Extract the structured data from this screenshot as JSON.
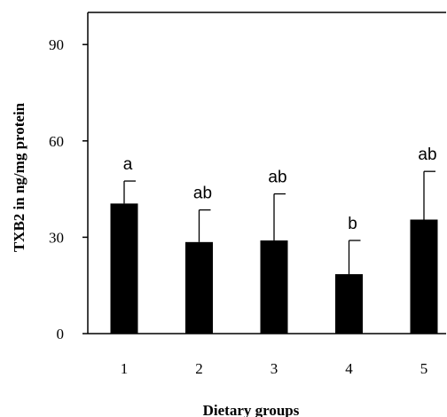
{
  "chart_data": {
    "type": "bar",
    "categories": [
      "1",
      "2",
      "3",
      "4",
      "5"
    ],
    "values": [
      40.5,
      28.5,
      29,
      18.5,
      35.5
    ],
    "errors": [
      7,
      10,
      14.5,
      10.5,
      15
    ],
    "significance_labels": [
      "a",
      "ab",
      "ab",
      "b",
      "ab"
    ],
    "xlabel": "Dietary groups",
    "ylabel": "TXB2 in ng/mg protein",
    "ylim": [
      0,
      100
    ],
    "yticks": [
      0,
      30,
      60,
      90
    ],
    "grid": false,
    "bar_color": "#000000"
  }
}
